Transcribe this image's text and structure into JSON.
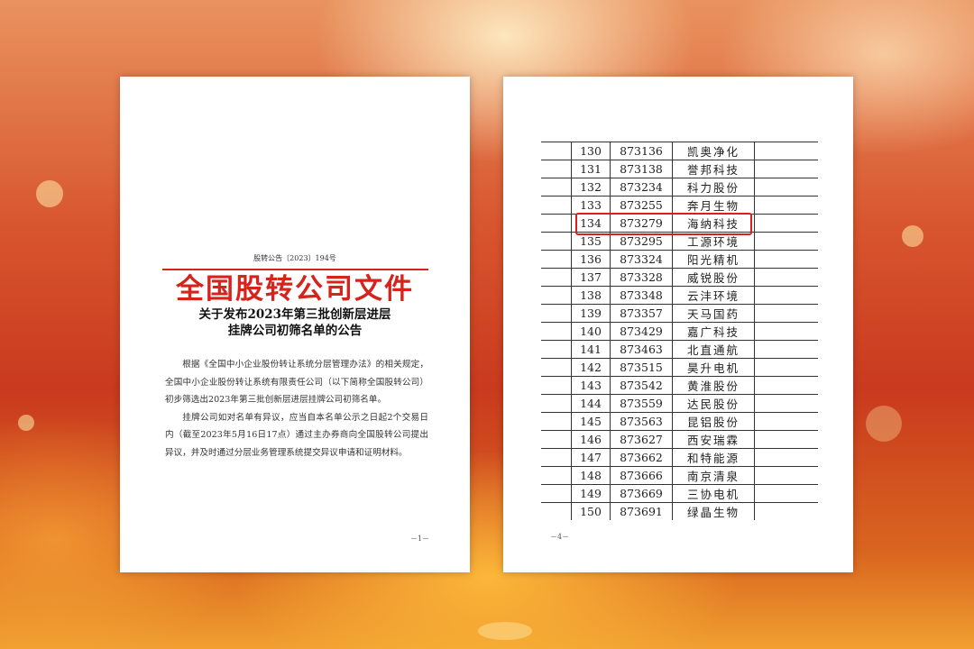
{
  "page1": {
    "title": "全国股转公司文件",
    "doc_number": "股转公告〔2023〕194号",
    "heading_line1": "关于发布2023年第三批创新层进层",
    "heading_line2": "挂牌公司初筛名单的公告",
    "paragraphs": [
      "根据《全国中小企业股份转让系统分层管理办法》的相关规定，全国中小企业股份转让系统有限责任公司（以下简称全国股转公司）初步筛选出2023年第三批创新层进层挂牌公司初筛名单。",
      "挂牌公司如对名单有异议，应当自本名单公示之日起2个交易日内（截至2023年5月16日17点）通过主办券商向全国股转公司提出异议，并及时通过分层业务管理系统提交异议申请和证明材料。"
    ],
    "page_number": "－1－"
  },
  "page2": {
    "rows": [
      [
        "130",
        "873136",
        "凯奥净化"
      ],
      [
        "131",
        "873138",
        "誉邦科技"
      ],
      [
        "132",
        "873234",
        "科力股份"
      ],
      [
        "133",
        "873255",
        "奔月生物"
      ],
      [
        "134",
        "873279",
        "海纳科技"
      ],
      [
        "135",
        "873295",
        "工源环境"
      ],
      [
        "136",
        "873324",
        "阳光精机"
      ],
      [
        "137",
        "873328",
        "威锐股份"
      ],
      [
        "138",
        "873348",
        "云沣环境"
      ],
      [
        "139",
        "873357",
        "天马国药"
      ],
      [
        "140",
        "873429",
        "嘉广科技"
      ],
      [
        "141",
        "873463",
        "北直通航"
      ],
      [
        "142",
        "873515",
        "昊升电机"
      ],
      [
        "143",
        "873542",
        "黄淮股份"
      ],
      [
        "144",
        "873559",
        "达民股份"
      ],
      [
        "145",
        "873563",
        "昆铝股份"
      ],
      [
        "146",
        "873627",
        "西安瑞霖"
      ],
      [
        "147",
        "873662",
        "和特能源"
      ],
      [
        "148",
        "873666",
        "南京清泉"
      ],
      [
        "149",
        "873669",
        "三协电机"
      ],
      [
        "150",
        "873691",
        "绿晶生物"
      ]
    ],
    "highlighted_row": "134",
    "highlight_color": "#d9201c",
    "page_number": "－4－"
  },
  "colors": {
    "title_red": "#d4241c"
  }
}
